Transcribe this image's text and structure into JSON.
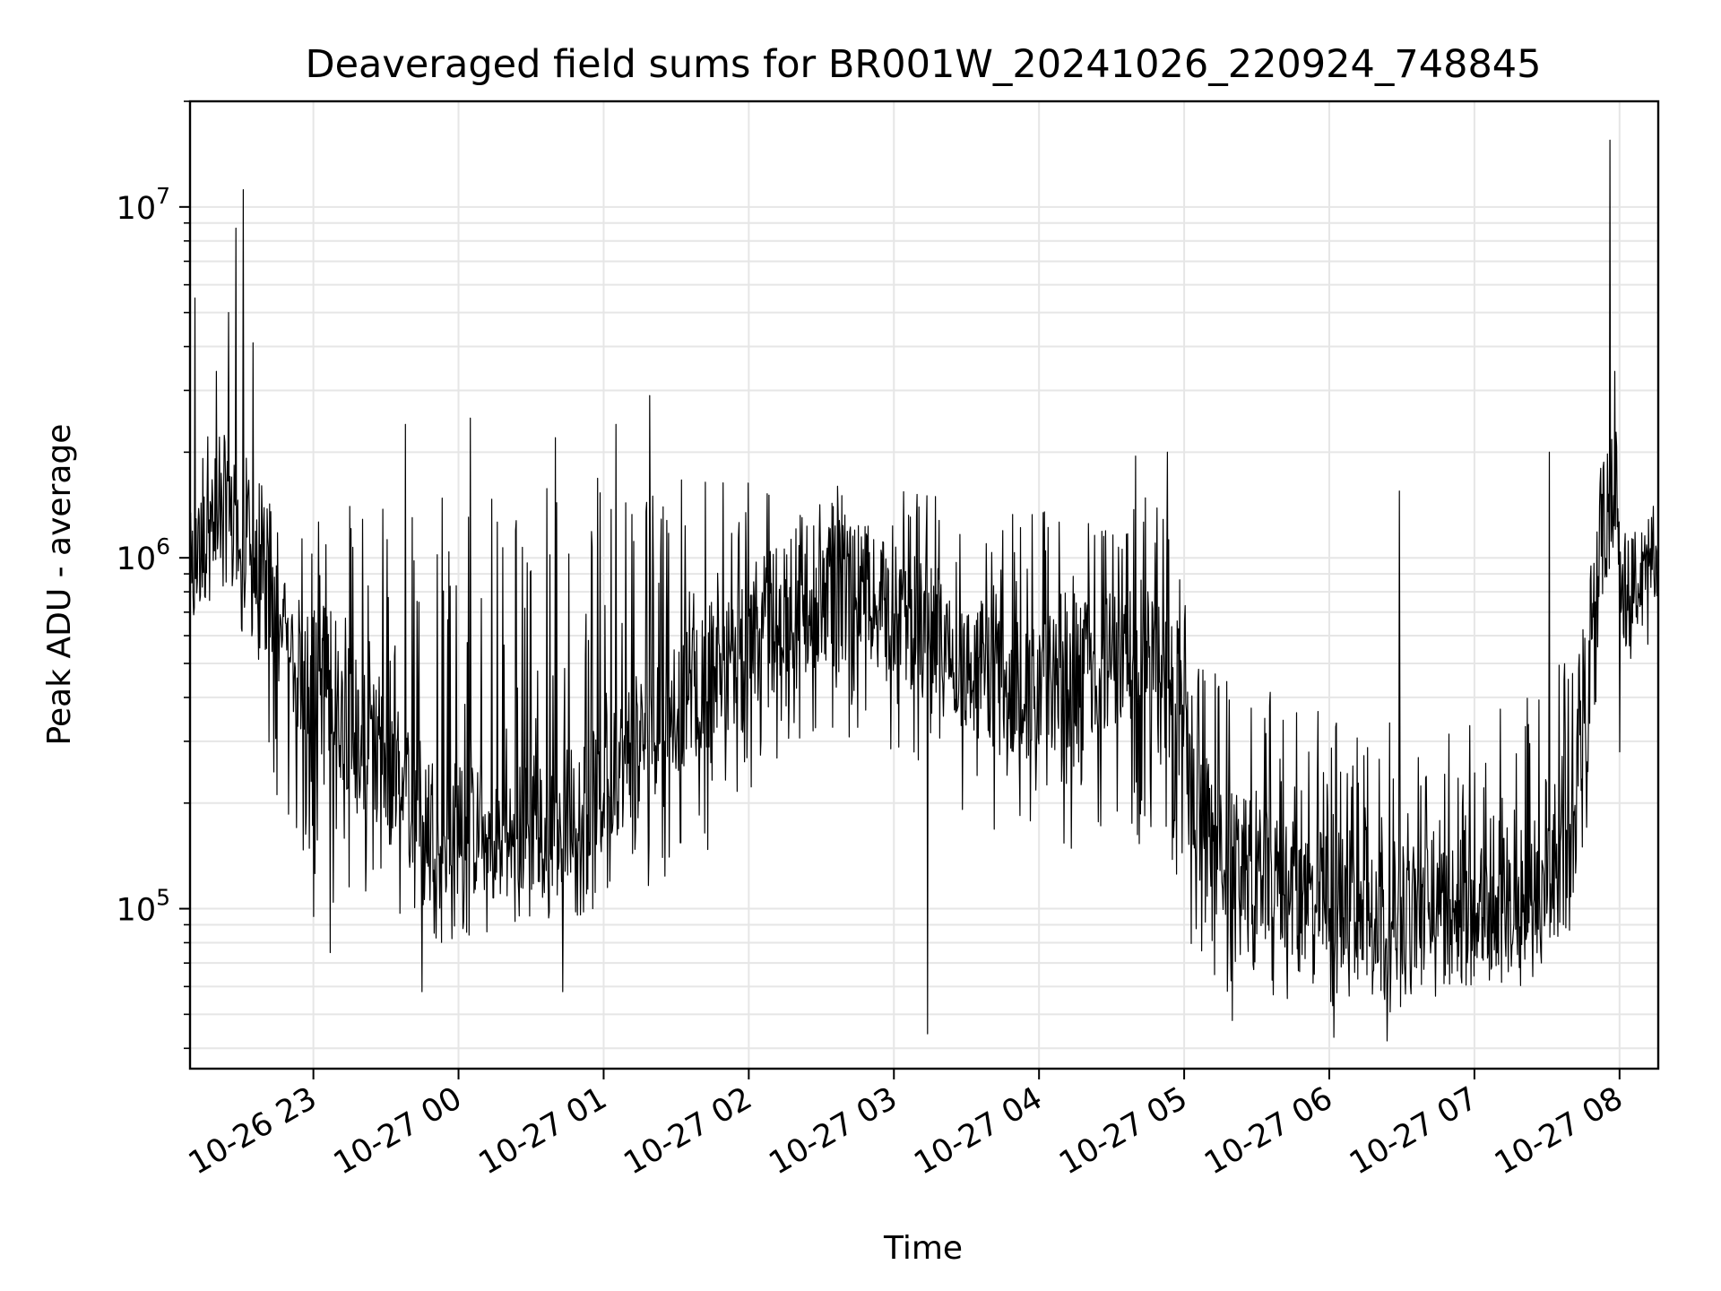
{
  "chart_data": {
    "type": "line",
    "title": "Deaveraged field sums for BR001W_20241026_220924_748845",
    "xlabel": "Time",
    "ylabel": "Peak ADU - average",
    "yscale": "log",
    "ylim": [
      35000,
      20000000
    ],
    "xlim": [
      "2024-10-26 22:09",
      "2024-10-27 08:16"
    ],
    "grid": true,
    "line_color": "#000000",
    "grid_color": "#e6e6e6",
    "x_ticks": [
      {
        "t": "2024-10-26 23:00",
        "label": "10-26 23"
      },
      {
        "t": "2024-10-27 00:00",
        "label": "10-27 00"
      },
      {
        "t": "2024-10-27 01:00",
        "label": "10-27 01"
      },
      {
        "t": "2024-10-27 02:00",
        "label": "10-27 02"
      },
      {
        "t": "2024-10-27 03:00",
        "label": "10-27 03"
      },
      {
        "t": "2024-10-27 04:00",
        "label": "10-27 04"
      },
      {
        "t": "2024-10-27 05:00",
        "label": "10-27 05"
      },
      {
        "t": "2024-10-27 06:00",
        "label": "10-27 06"
      },
      {
        "t": "2024-10-27 07:00",
        "label": "10-27 07"
      },
      {
        "t": "2024-10-27 08:00",
        "label": "10-27 08"
      }
    ],
    "y_ticks": [
      {
        "value": 100000,
        "base": "10",
        "exp": "5"
      },
      {
        "value": 1000000,
        "base": "10",
        "exp": "6"
      },
      {
        "value": 10000000,
        "base": "10",
        "exp": "7"
      }
    ],
    "series": [
      {
        "x": [
          "2024-10-26 22:09",
          "2024-10-26 22:15",
          "2024-10-26 22:20",
          "2024-10-26 22:27",
          "2024-10-26 22:33",
          "2024-10-26 22:40",
          "2024-10-26 22:45",
          "2024-10-26 22:50",
          "2024-10-26 23:00",
          "2024-10-26 23:10",
          "2024-10-26 23:20",
          "2024-10-26 23:30",
          "2024-10-26 23:40",
          "2024-10-26 23:50",
          "2024-10-27 00:00",
          "2024-10-27 00:15",
          "2024-10-27 00:30",
          "2024-10-27 00:45",
          "2024-10-27 01:00",
          "2024-10-27 01:15",
          "2024-10-27 01:30",
          "2024-10-27 01:45",
          "2024-10-27 02:00",
          "2024-10-27 02:15",
          "2024-10-27 02:30",
          "2024-10-27 02:45",
          "2024-10-27 03:00",
          "2024-10-27 03:15",
          "2024-10-27 03:30",
          "2024-10-27 03:45",
          "2024-10-27 04:00",
          "2024-10-27 04:15",
          "2024-10-27 04:30",
          "2024-10-27 04:45",
          "2024-10-27 04:55",
          "2024-10-27 05:05",
          "2024-10-27 05:20",
          "2024-10-27 05:35",
          "2024-10-27 05:50",
          "2024-10-27 06:05",
          "2024-10-27 06:20",
          "2024-10-27 06:35",
          "2024-10-27 06:50",
          "2024-10-27 07:05",
          "2024-10-27 07:20",
          "2024-10-27 07:30",
          "2024-10-27 07:38",
          "2024-10-27 07:45",
          "2024-10-27 07:52",
          "2024-10-27 07:57",
          "2024-10-27 08:03",
          "2024-10-27 08:10",
          "2024-10-27 08:16"
        ],
        "base": [
          850000,
          1100000,
          1300000,
          1150000,
          950000,
          800000,
          650000,
          520000,
          450000,
          370000,
          300000,
          260000,
          220000,
          180000,
          170000,
          160000,
          170000,
          190000,
          230000,
          300000,
          380000,
          460000,
          560000,
          680000,
          780000,
          800000,
          720000,
          600000,
          480000,
          420000,
          420000,
          460000,
          520000,
          560000,
          480000,
          180000,
          140000,
          120000,
          110000,
          105000,
          100000,
          100000,
          100000,
          100000,
          105000,
          120000,
          140000,
          230000,
          1100000,
          1500000,
          750000,
          850000,
          920000
        ],
        "low": [
          650000,
          700000,
          750000,
          700000,
          500000,
          300000,
          200000,
          150000,
          120000,
          100000,
          95000,
          88000,
          82000,
          78000,
          80000,
          85000,
          88000,
          92000,
          100000,
          110000,
          130000,
          150000,
          200000,
          250000,
          300000,
          310000,
          280000,
          220000,
          170000,
          140000,
          130000,
          140000,
          150000,
          150000,
          110000,
          60000,
          55000,
          55000,
          52000,
          50000,
          50000,
          52000,
          55000,
          58000,
          60000,
          70000,
          75000,
          120000,
          550000,
          700000,
          550000,
          620000,
          750000
        ],
        "high": [
          1400000,
          2200000,
          2600000,
          2300000,
          1900000,
          1600000,
          1400000,
          1300000,
          1300000,
          1400000,
          1500000,
          1700000,
          1800000,
          1900000,
          1900000,
          1800000,
          1750000,
          1700000,
          1700000,
          1700000,
          1750000,
          1750000,
          1750000,
          1700000,
          1700000,
          1650000,
          1600000,
          1550000,
          1450000,
          1400000,
          1400000,
          1450000,
          1500000,
          1500000,
          1400000,
          550000,
          480000,
          420000,
          380000,
          360000,
          340000,
          340000,
          340000,
          360000,
          420000,
          480000,
          520000,
          700000,
          1800000,
          3500000,
          1300000,
          1200000,
          1200000
        ],
        "spikes": [
          {
            "t": "2024-10-26 22:11",
            "value": 5500000
          },
          {
            "t": "2024-10-26 22:20",
            "value": 3400000
          },
          {
            "t": "2024-10-26 22:25",
            "value": 5000000
          },
          {
            "t": "2024-10-26 22:28",
            "value": 8700000
          },
          {
            "t": "2024-10-26 22:31",
            "value": 11200000
          },
          {
            "t": "2024-10-26 22:35",
            "value": 4100000
          },
          {
            "t": "2024-10-26 23:00",
            "value": 95000
          },
          {
            "t": "2024-10-26 23:07",
            "value": 75000
          },
          {
            "t": "2024-10-26 23:38",
            "value": 2400000
          },
          {
            "t": "2024-10-26 23:45",
            "value": 58000
          },
          {
            "t": "2024-10-27 00:05",
            "value": 2500000
          },
          {
            "t": "2024-10-27 00:40",
            "value": 2200000
          },
          {
            "t": "2024-10-27 00:43",
            "value": 58000
          },
          {
            "t": "2024-10-27 01:05",
            "value": 2400000
          },
          {
            "t": "2024-10-27 01:19",
            "value": 2900000
          },
          {
            "t": "2024-10-27 03:14",
            "value": 44000
          },
          {
            "t": "2024-10-27 04:40",
            "value": 1950000
          },
          {
            "t": "2024-10-27 04:53",
            "value": 2000000
          },
          {
            "t": "2024-10-27 05:20",
            "value": 48000
          },
          {
            "t": "2024-10-27 06:02",
            "value": 43000
          },
          {
            "t": "2024-10-27 06:24",
            "value": 42000
          },
          {
            "t": "2024-10-27 06:29",
            "value": 1550000
          },
          {
            "t": "2024-10-27 07:31",
            "value": 2000000
          },
          {
            "t": "2024-10-27 07:56",
            "value": 15500000
          },
          {
            "t": "2024-10-27 07:58",
            "value": 3400000
          },
          {
            "t": "2024-10-27 08:00",
            "value": 280000
          }
        ]
      }
    ]
  }
}
